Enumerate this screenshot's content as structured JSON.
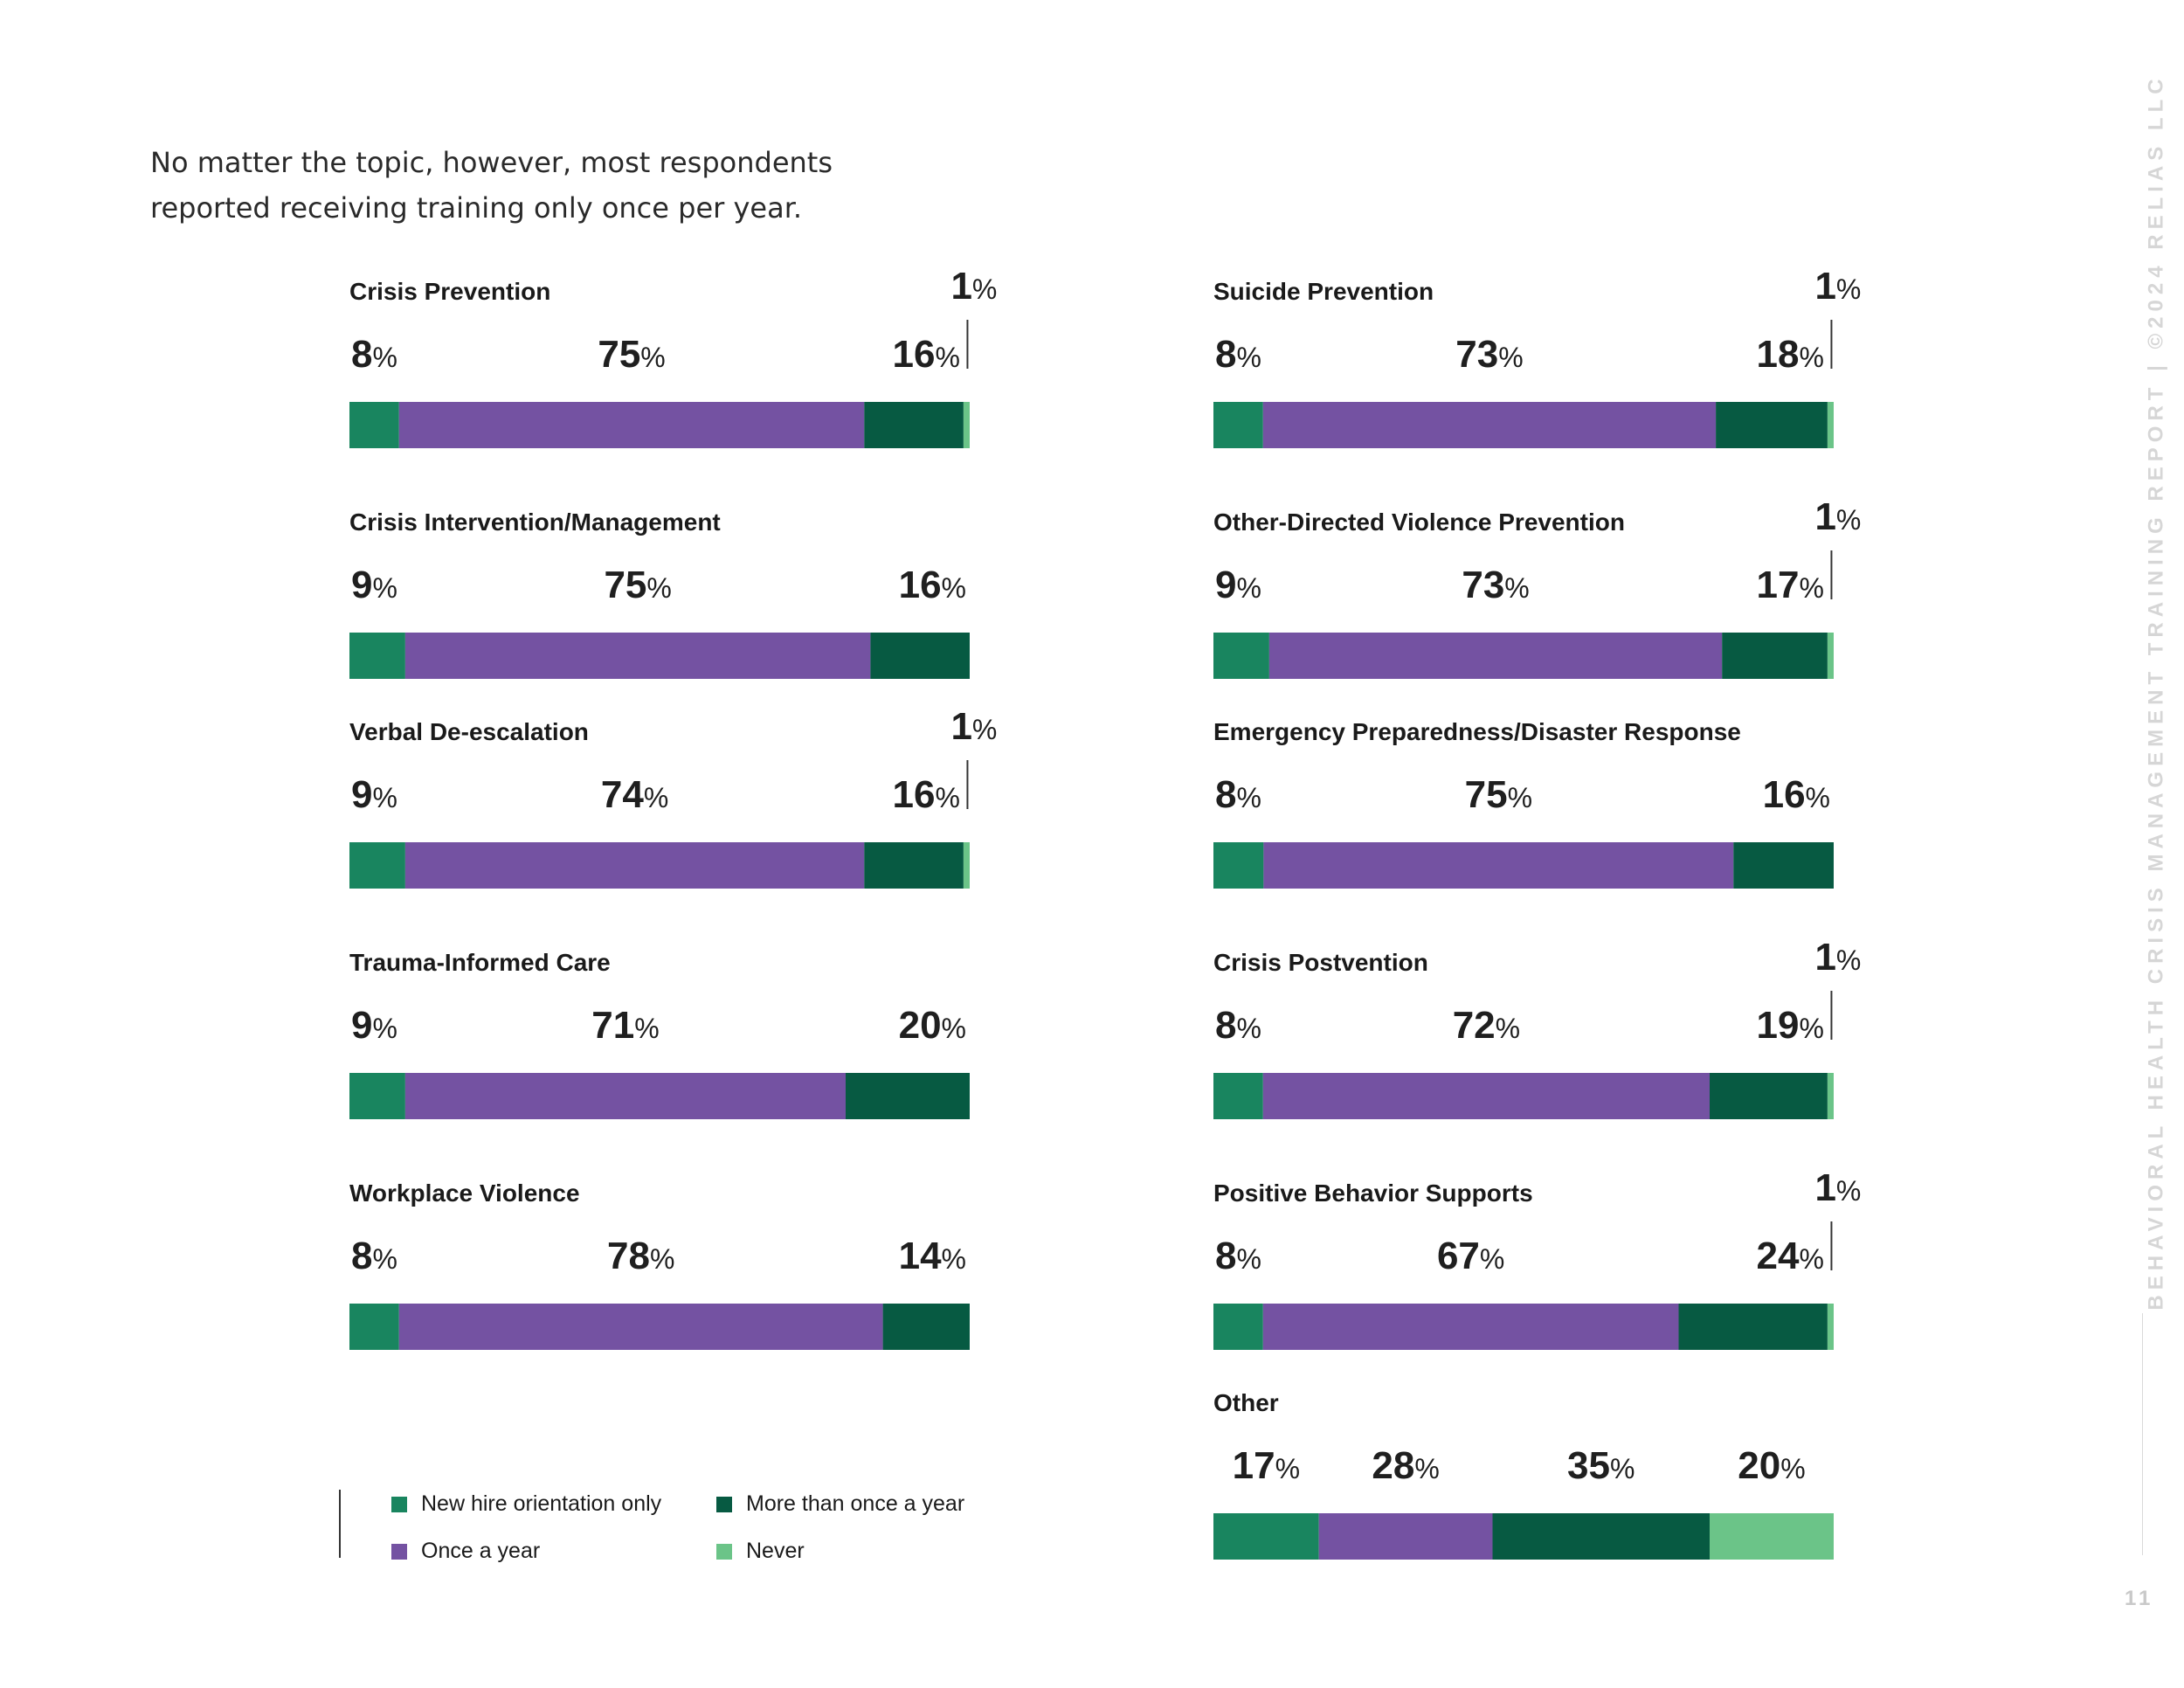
{
  "intro_text": "No matter the topic, however, most respondents reported receiving training only once per year.",
  "side_text": "BEHAVIORAL HEALTH CRISIS MANAGEMENT TRAINING REPORT | ©2024 RELIAS LLC",
  "page_number": "11",
  "percent_suffix": "%",
  "colors": {
    "new_hire": "#19855f",
    "once": "#7452a2",
    "more_than_once": "#075a42",
    "never": "#6bc488"
  },
  "legend": [
    {
      "key": "new_hire",
      "label": "New hire orientation only"
    },
    {
      "key": "more_than_once",
      "label": "More than once a year"
    },
    {
      "key": "once",
      "label": "Once a year"
    },
    {
      "key": "never",
      "label": "Never"
    }
  ],
  "chart_data": {
    "type": "bar",
    "stacked": true,
    "orientation": "horizontal",
    "unit": "%",
    "series_keys": [
      "new_hire",
      "once",
      "more_than_once",
      "never"
    ],
    "series_names": [
      "New hire orientation only",
      "Once a year",
      "More than once a year",
      "Never"
    ],
    "charts": [
      {
        "title": "Crisis Prevention",
        "values": [
          8,
          75,
          16,
          1
        ]
      },
      {
        "title": "Suicide Prevention",
        "values": [
          8,
          73,
          18,
          1
        ]
      },
      {
        "title": "Crisis Intervention/Management",
        "values": [
          9,
          75,
          16,
          0
        ]
      },
      {
        "title": "Other-Directed Violence Prevention",
        "values": [
          9,
          73,
          17,
          1
        ]
      },
      {
        "title": "Verbal De-escalation",
        "values": [
          9,
          74,
          16,
          1
        ]
      },
      {
        "title": "Emergency Preparedness/Disaster Response",
        "values": [
          8,
          75,
          16,
          0
        ]
      },
      {
        "title": "Trauma-Informed Care",
        "values": [
          9,
          71,
          20,
          0
        ]
      },
      {
        "title": "Crisis Postvention",
        "values": [
          8,
          72,
          19,
          1
        ]
      },
      {
        "title": "Workplace Violence",
        "values": [
          8,
          78,
          14,
          0
        ]
      },
      {
        "title": "Positive Behavior Supports",
        "values": [
          8,
          67,
          24,
          1
        ]
      },
      {
        "title": "Other",
        "values": [
          17,
          28,
          35,
          20
        ]
      }
    ]
  }
}
